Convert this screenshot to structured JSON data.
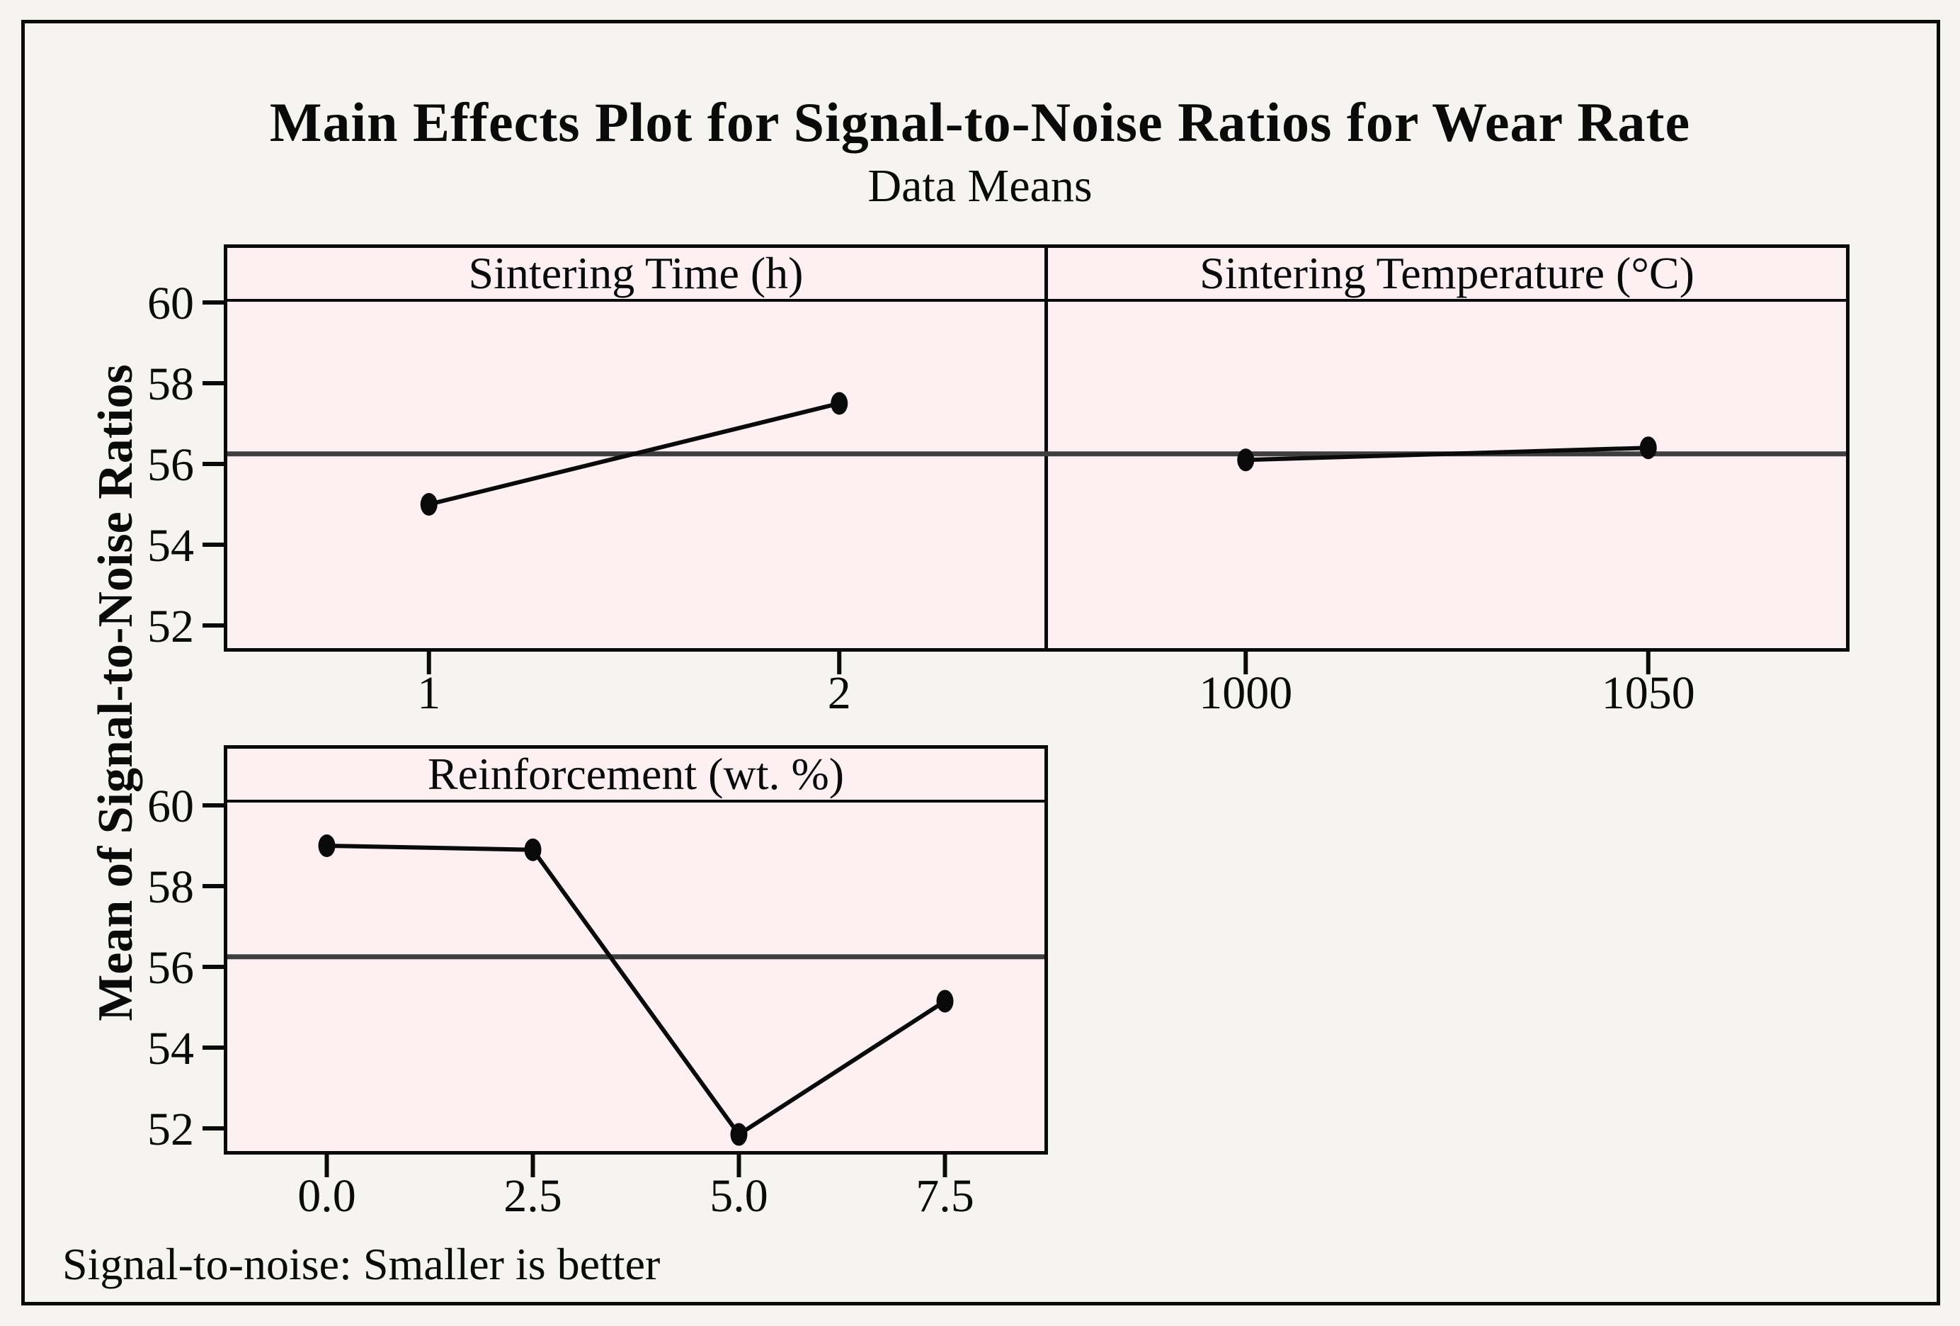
{
  "chart_data": {
    "type": "line",
    "title": "Main Effects Plot for Signal-to-Noise Ratios for Wear Rate",
    "subtitle": "Data Means",
    "ylabel": "Mean of Signal-to-Noise Ratios",
    "footnote": "Signal-to-noise: Smaller is better",
    "legend_position": "none",
    "grid": "off",
    "y_axis": {
      "tick_labels": [
        "60",
        "58",
        "56",
        "54",
        "52"
      ],
      "tick_values": [
        60,
        58,
        56,
        54,
        52
      ],
      "ylim": [
        51.35,
        60.05
      ]
    },
    "reference_mean": 56.25,
    "panels": [
      {
        "id": "sintering-time",
        "title": "Sintering Time (h)",
        "row": 1,
        "x_tick_labels": [
          "1",
          "2"
        ],
        "x": [
          1,
          2
        ],
        "values": [
          55.0,
          57.5
        ]
      },
      {
        "id": "sintering-temperature",
        "title": "Sintering Temperature (°C)",
        "row": 1,
        "x_tick_labels": [
          "1000",
          "1050"
        ],
        "x": [
          1000,
          1050
        ],
        "values": [
          56.1,
          56.4
        ]
      },
      {
        "id": "reinforcement",
        "title": "Reinforcement (wt. %)",
        "row": 2,
        "x_tick_labels": [
          "0.0",
          "2.5",
          "5.0",
          "7.5"
        ],
        "x": [
          0.0,
          2.5,
          5.0,
          7.5
        ],
        "values": [
          59.0,
          58.9,
          51.85,
          55.15
        ]
      }
    ],
    "colors": {
      "panel_fill": "#fdf0f2",
      "background": "#f5f4f1",
      "series_line": "#0a0a0a",
      "marker": "#0a0a0a",
      "reference_line": "#3f3f3f",
      "border": "#0a0a0a"
    }
  }
}
